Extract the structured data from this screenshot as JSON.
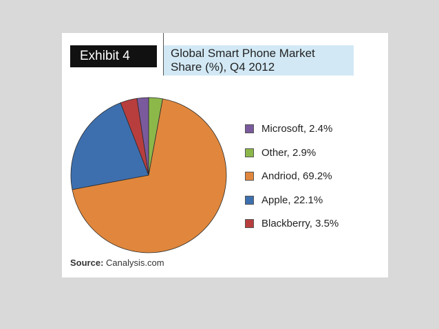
{
  "header": {
    "exhibit": "Exhibit 4",
    "title_line1": "Global Smart Phone Market",
    "title_line2": "Share (%), Q4 2012"
  },
  "source": {
    "key": "Source:",
    "value": "Canalysis.com"
  },
  "chart_data": {
    "type": "pie",
    "title": "Global Smart Phone Market Share (%), Q4 2012",
    "unit": "%",
    "legend_position": "right",
    "slices": [
      {
        "name": "Microsoft",
        "value": 2.4,
        "label": "Microsoft, 2.4%",
        "color": "#7a5a9c"
      },
      {
        "name": "Other",
        "value": 2.9,
        "label": "Other, 2.9%",
        "color": "#8cb84a"
      },
      {
        "name": "Andriod",
        "value": 69.2,
        "label": "Andriod, 69.2%",
        "color": "#e0873d"
      },
      {
        "name": "Apple",
        "value": 22.1,
        "label": "Apple, 22.1%",
        "color": "#3d6fae"
      },
      {
        "name": "Blackberry",
        "value": 3.5,
        "label": "Blackberry, 3.5%",
        "color": "#b83e3e"
      }
    ],
    "slice_order_clockwise_from_top": [
      "Other",
      "Andriod",
      "Apple",
      "Blackberry",
      "Microsoft"
    ]
  }
}
